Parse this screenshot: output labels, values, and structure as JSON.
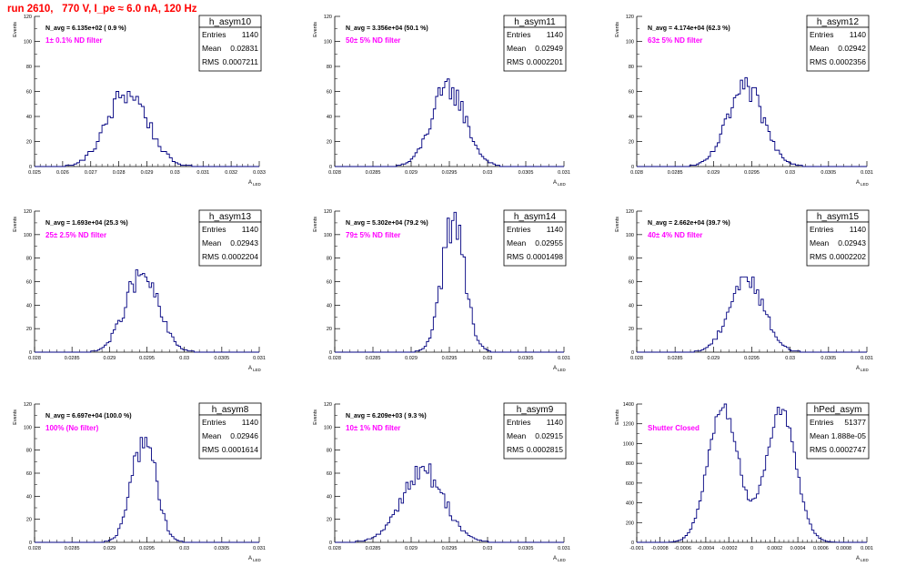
{
  "run_title": "run 2610,   770 V, I_pe ≈ 6.0 nA, 120 Hz",
  "colors": {
    "hist": "#000080",
    "annotation": "#ff00ff",
    "title": "#ff0000",
    "axis": "#000000"
  },
  "common": {
    "ylabel": "Events",
    "xlabel": "A",
    "xlabel_sub": "LED"
  },
  "chart_data": [
    {
      "type": "histogram",
      "name": "h_asym10",
      "navg": "N_avg = 6.135e+02 ( 0.9 %)",
      "annotation": "1± 0.1% ND filter",
      "stats": {
        "entries": "1140",
        "mean": "0.02831",
        "rms": "0.0007211"
      },
      "xlim": [
        0.025,
        0.033
      ],
      "ylim": [
        0,
        120
      ],
      "xticks": [
        "0.025",
        "0.026",
        "0.027",
        "0.028",
        "0.029",
        "0.03",
        "0.031",
        "0.032",
        "0.033"
      ],
      "yticks": [
        "0",
        "20",
        "40",
        "60",
        "80",
        "100",
        "120"
      ],
      "peak": 60,
      "mean_val": 0.02831,
      "sigma": 0.0007211,
      "n_bins": 80
    },
    {
      "type": "histogram",
      "name": "h_asym11",
      "navg": "N_avg = 3.356e+04 (50.1 %)",
      "annotation": "50± 5% ND filter",
      "stats": {
        "entries": "1140",
        "mean": "0.02949",
        "rms": "0.0002201"
      },
      "xlim": [
        0.028,
        0.031
      ],
      "ylim": [
        0,
        120
      ],
      "xticks": [
        "0.028",
        "0.0285",
        "0.029",
        "0.0295",
        "0.03",
        "0.0305",
        "0.031"
      ],
      "yticks": [
        "0",
        "20",
        "40",
        "60",
        "80",
        "100",
        "120"
      ],
      "peak": 63,
      "mean_val": 0.02949,
      "sigma": 0.0002201,
      "n_bins": 100
    },
    {
      "type": "histogram",
      "name": "h_asym12",
      "navg": "N_avg = 4.174e+04 (62.3 %)",
      "annotation": "63± 5% ND filter",
      "stats": {
        "entries": "1140",
        "mean": "0.02942",
        "rms": "0.0002356"
      },
      "xlim": [
        0.028,
        0.031
      ],
      "ylim": [
        0,
        120
      ],
      "xticks": [
        "0.028",
        "0.0285",
        "0.029",
        "0.0295",
        "0.03",
        "0.0305",
        "0.031"
      ],
      "yticks": [
        "0",
        "20",
        "40",
        "60",
        "80",
        "100",
        "120"
      ],
      "peak": 62,
      "mean_val": 0.02942,
      "sigma": 0.0002356,
      "n_bins": 100
    },
    {
      "type": "histogram",
      "name": "h_asym13",
      "navg": "N_avg = 1.693e+04 (25.3 %)",
      "annotation": "25± 2.5% ND filter",
      "stats": {
        "entries": "1140",
        "mean": "0.02943",
        "rms": "0.0002204"
      },
      "xlim": [
        0.028,
        0.031
      ],
      "ylim": [
        0,
        120
      ],
      "xticks": [
        "0.028",
        "0.0285",
        "0.029",
        "0.0295",
        "0.03",
        "0.0305",
        "0.031"
      ],
      "yticks": [
        "0",
        "20",
        "40",
        "60",
        "80",
        "100",
        "120"
      ],
      "peak": 66,
      "mean_val": 0.02943,
      "sigma": 0.0002204,
      "n_bins": 100
    },
    {
      "type": "histogram",
      "name": "h_asym14",
      "navg": "N_avg = 5.302e+04 (79.2 %)",
      "annotation": "79± 5% ND filter",
      "stats": {
        "entries": "1140",
        "mean": "0.02955",
        "rms": "0.0001498"
      },
      "xlim": [
        0.028,
        0.031
      ],
      "ylim": [
        0,
        120
      ],
      "xticks": [
        "0.028",
        "0.0285",
        "0.029",
        "0.0295",
        "0.03",
        "0.0305",
        "0.031"
      ],
      "yticks": [
        "0",
        "20",
        "40",
        "60",
        "80",
        "100",
        "120"
      ],
      "peak": 112,
      "mean_val": 0.02955,
      "sigma": 0.0001498,
      "n_bins": 100
    },
    {
      "type": "histogram",
      "name": "h_asym15",
      "navg": "N_avg = 2.662e+04 (39.7 %)",
      "annotation": "40± 4% ND filter",
      "stats": {
        "entries": "1140",
        "mean": "0.02943",
        "rms": "0.0002202"
      },
      "xlim": [
        0.028,
        0.031
      ],
      "ylim": [
        0,
        120
      ],
      "xticks": [
        "0.028",
        "0.0285",
        "0.029",
        "0.0295",
        "0.03",
        "0.0305",
        "0.031"
      ],
      "yticks": [
        "0",
        "20",
        "40",
        "60",
        "80",
        "100",
        "120"
      ],
      "peak": 64,
      "mean_val": 0.02943,
      "sigma": 0.0002202,
      "n_bins": 100
    },
    {
      "type": "histogram",
      "name": "h_asym8",
      "navg": "N_avg = 6.697e+04 (100.0 %)",
      "annotation": "100% (No filter)",
      "stats": {
        "entries": "1140",
        "mean": "0.02946",
        "rms": "0.0001614"
      },
      "xlim": [
        0.028,
        0.031
      ],
      "ylim": [
        0,
        120
      ],
      "xticks": [
        "0.028",
        "0.0285",
        "0.029",
        "0.0295",
        "0.03",
        "0.0305",
        "0.031"
      ],
      "yticks": [
        "0",
        "20",
        "40",
        "60",
        "80",
        "100",
        "120"
      ],
      "peak": 91,
      "mean_val": 0.02946,
      "sigma": 0.0001614,
      "n_bins": 100
    },
    {
      "type": "histogram",
      "name": "h_asym9",
      "navg": "N_avg = 6.209e+03 ( 9.3 %)",
      "annotation": "10± 1% ND filter",
      "stats": {
        "entries": "1140",
        "mean": "0.02915",
        "rms": "0.0002815"
      },
      "xlim": [
        0.028,
        0.031
      ],
      "ylim": [
        0,
        120
      ],
      "xticks": [
        "0.028",
        "0.0285",
        "0.029",
        "0.0295",
        "0.03",
        "0.0305",
        "0.031"
      ],
      "yticks": [
        "0",
        "20",
        "40",
        "60",
        "80",
        "100",
        "120"
      ],
      "peak": 62,
      "mean_val": 0.02915,
      "sigma": 0.0002815,
      "n_bins": 100
    },
    {
      "type": "histogram",
      "name": "hPed_asym",
      "navg": "",
      "annotation": "Shutter Closed",
      "stats": {
        "entries": "51377",
        "mean": "1.888e-05",
        "rms": "0.0002747"
      },
      "xlim": [
        -0.001,
        0.001
      ],
      "ylim": [
        0,
        1400
      ],
      "xticks": [
        "-0.001",
        "-0.0008",
        "-0.0006",
        "-0.0004",
        "-0.0002",
        "0",
        "0.0002",
        "0.0004",
        "0.0006",
        "0.0008",
        "0.001"
      ],
      "yticks": [
        "0",
        "200",
        "400",
        "600",
        "800",
        "1000",
        "1200",
        "1400"
      ],
      "bimodal": {
        "peak_values": [
          1380,
          1330
        ],
        "centers": [
          -0.00025,
          0.00025
        ],
        "width": 0.00013,
        "valley": 1050
      },
      "n_bins": 100
    }
  ]
}
